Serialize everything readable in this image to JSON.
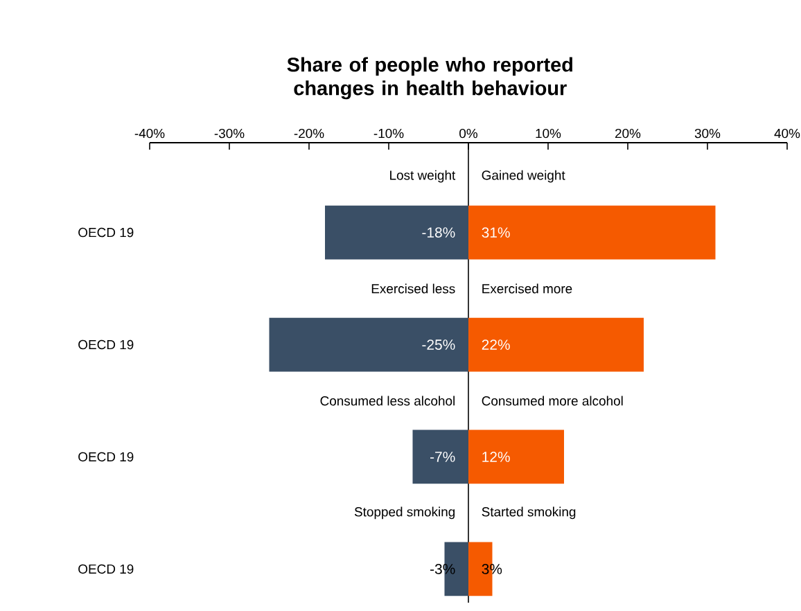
{
  "chart_data": {
    "type": "bar",
    "orientation": "horizontal",
    "stacked": true,
    "title": "Share of people who reported changes in health behaviour",
    "categories": [
      "OECD 19",
      "OECD 19",
      "OECD 19",
      "OECD 19"
    ],
    "series": [
      {
        "color": "#3a4f66",
        "values": [
          -18,
          -25,
          -7,
          -3
        ],
        "value_labels": [
          "-18%",
          "-25%",
          "-7%",
          "-3%"
        ]
      },
      {
        "color": "#f55a00",
        "values": [
          31,
          22,
          12,
          3
        ],
        "value_labels": [
          "31%",
          "22%",
          "12%",
          "3%"
        ]
      }
    ],
    "annotations": [
      "Lost weight",
      "Gained weight",
      "Exercised less",
      "Exercised more",
      "Consumed less alcohol",
      "Consumed more alcohol",
      "Stopped smoking",
      "Started smoking"
    ],
    "xlim": [
      -40,
      40
    ],
    "xticks": [
      {
        "value": -40,
        "label": "-40%"
      },
      {
        "value": -30,
        "label": "-30%"
      },
      {
        "value": -20,
        "label": "-20%"
      },
      {
        "value": -10,
        "label": "-10%"
      },
      {
        "value": 0,
        "label": "0%"
      },
      {
        "value": 10,
        "label": "10%"
      },
      {
        "value": 20,
        "label": "20%"
      },
      {
        "value": 30,
        "label": "30%"
      },
      {
        "value": 40,
        "label": "40%"
      }
    ]
  }
}
